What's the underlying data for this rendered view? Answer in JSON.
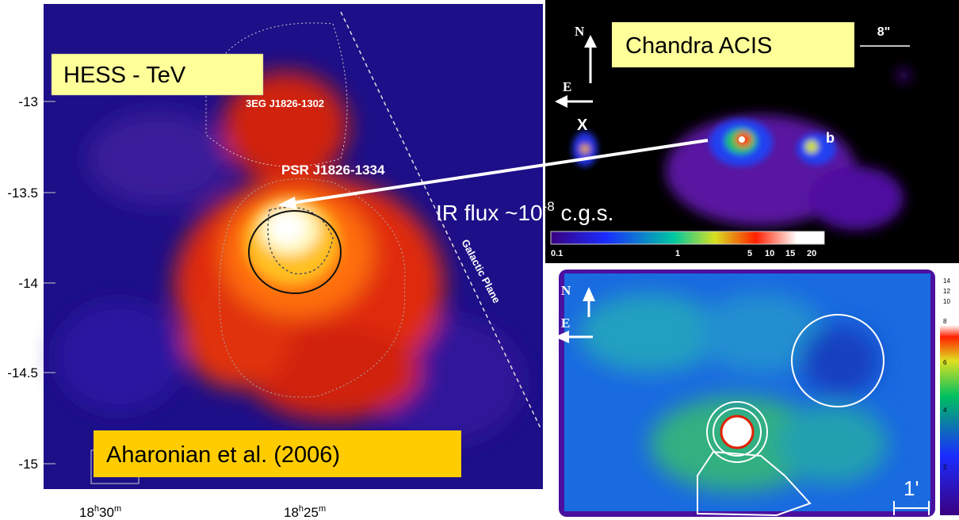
{
  "left_panel": {
    "label": "HESS - TeV",
    "source_label": "3EG J1826-1302",
    "pulsar_label": "PSR J1826-1334",
    "plane_label": "Galactic Plane",
    "citation": "Aharonian et al. (2006)",
    "dec_labels": [
      "-13",
      "-13.5",
      "-14",
      "-14.5",
      "-15"
    ],
    "ra_labels": [
      {
        "hours": "18",
        "h": "h",
        "minutes": "30",
        "m": "m"
      },
      {
        "hours": "18",
        "h": "h",
        "minutes": "25",
        "m": "m"
      }
    ]
  },
  "top_right_panel": {
    "label": "Chandra ACIS",
    "north": "N",
    "east": "E",
    "scale": "8\"",
    "source_x": "X",
    "source_b": "b",
    "colorbar_labels": [
      "0.1",
      "1",
      "5",
      "10",
      "15",
      "20"
    ]
  },
  "annotation": {
    "text": "IR flux ~10",
    "exponent": "-8",
    "unit": " c.g.s."
  },
  "bottom_right_panel": {
    "north": "N",
    "east": "E",
    "scale": "1'",
    "colorbar_labels": [
      "14",
      "12",
      "10",
      "8",
      "6",
      "4",
      "2"
    ]
  }
}
